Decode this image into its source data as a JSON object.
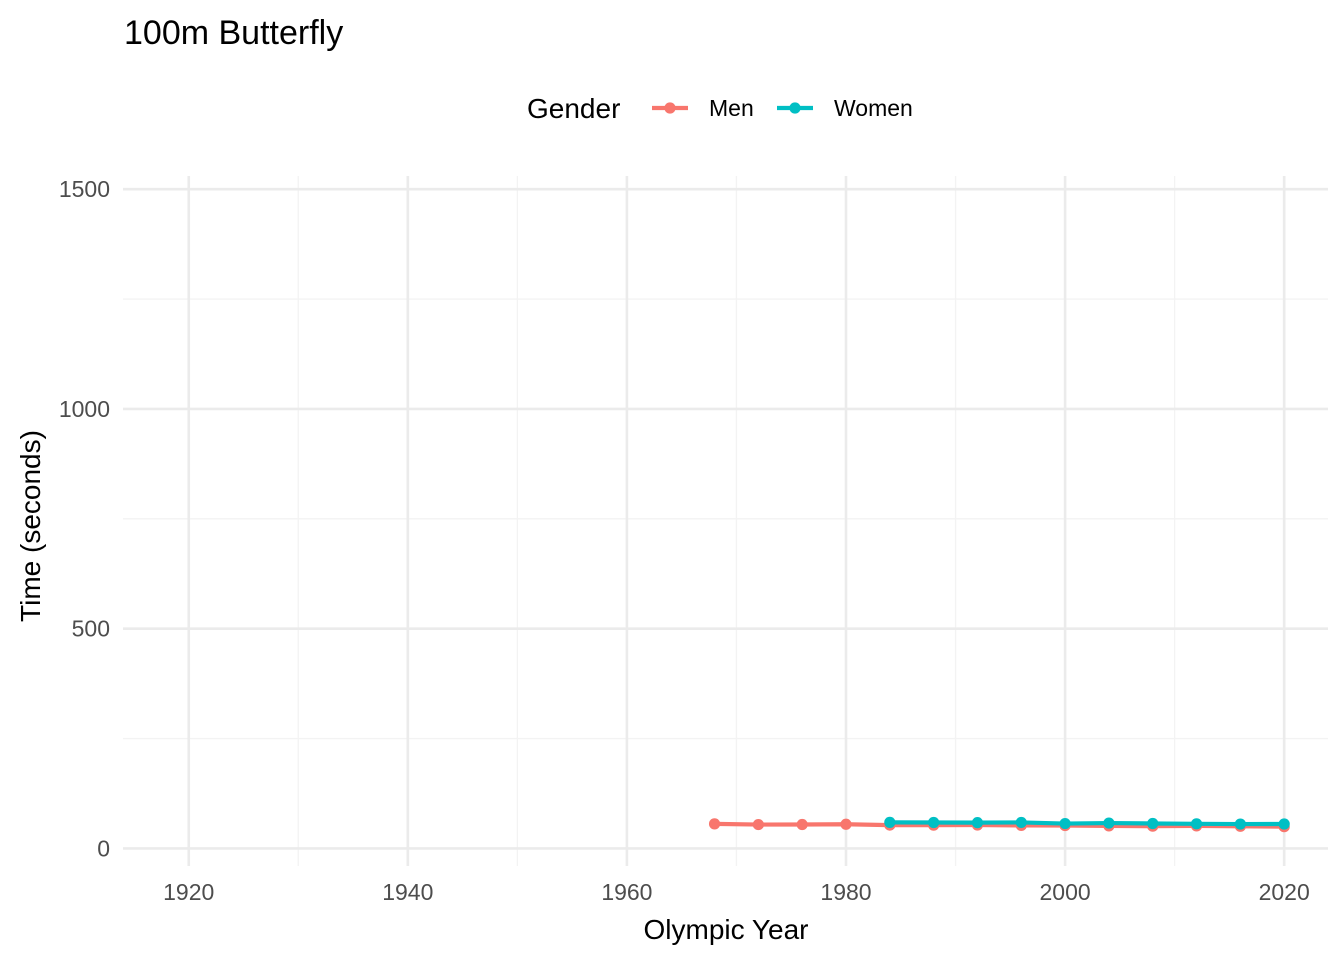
{
  "chart_data": {
    "type": "line",
    "title": "100m Butterfly",
    "xlabel": "Olympic Year",
    "ylabel": "Time (seconds)",
    "legend_title": "Gender",
    "legend_position": "top",
    "xlim": [
      1914,
      2024
    ],
    "ylim": [
      -40,
      1530
    ],
    "x_ticks": [
      1920,
      1940,
      1960,
      1980,
      2000,
      2020
    ],
    "y_ticks": [
      0,
      500,
      1000,
      1500
    ],
    "grid": true,
    "series": [
      {
        "name": "Men",
        "color": "#F8766D",
        "x": [
          1968,
          1972,
          1976,
          1980,
          1984,
          1988,
          1992,
          1996,
          2000,
          2004,
          2008,
          2012,
          2016,
          2020
        ],
        "values": [
          55.9,
          54.27,
          54.35,
          54.92,
          53.08,
          53.0,
          53.32,
          52.27,
          52.0,
          51.25,
          50.58,
          51.21,
          50.39,
          49.45
        ]
      },
      {
        "name": "Women",
        "color": "#00BFC4",
        "x": [
          1984,
          1988,
          1992,
          1996,
          2000,
          2004,
          2008,
          2012,
          2016,
          2020
        ],
        "values": [
          59.26,
          59.0,
          58.62,
          59.13,
          56.61,
          57.72,
          56.73,
          55.98,
          55.48,
          55.59
        ]
      }
    ]
  }
}
